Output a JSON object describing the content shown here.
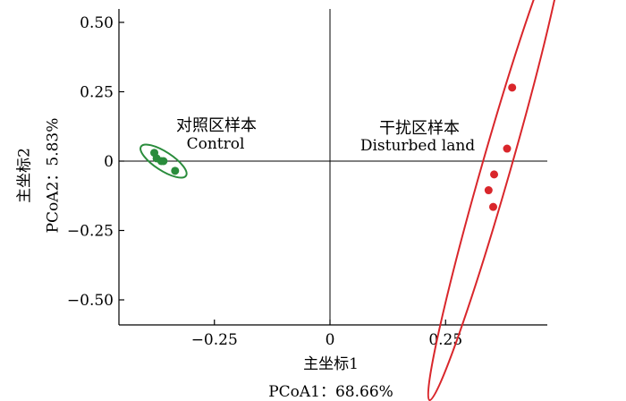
{
  "chart_data": {
    "type": "scatter",
    "title": "",
    "xlabel_cn": "主坐标1",
    "xlabel_en": "PCoA1：68.66%",
    "ylabel_cn": "主坐标2",
    "ylabel_en": "PCoA2：5.83%",
    "xlim": [
      -0.5,
      0.5
    ],
    "ylim": [
      -0.6,
      0.55
    ],
    "x_ticks": [
      {
        "value": -0.25,
        "label": "−0.25"
      },
      {
        "value": 0,
        "label": "0"
      },
      {
        "value": 0.25,
        "label": "0.25"
      }
    ],
    "y_ticks": [
      {
        "value": 0.5,
        "label": "0.50"
      },
      {
        "value": 0.25,
        "label": "0.25"
      },
      {
        "value": 0,
        "label": "0"
      },
      {
        "value": -0.25,
        "label": "−0.25"
      },
      {
        "value": -0.5,
        "label": "−0.50"
      }
    ],
    "series": [
      {
        "name_cn": "对照区样本",
        "name_en": "Control",
        "color": "#2a8c3c",
        "points": [
          {
            "x": -0.38,
            "y": 0.03
          },
          {
            "x": -0.375,
            "y": 0.01
          },
          {
            "x": -0.365,
            "y": 0.0
          },
          {
            "x": -0.36,
            "y": 0.0
          },
          {
            "x": -0.335,
            "y": -0.035
          }
        ],
        "ellipse": {
          "cx": -0.36,
          "cy": 0.0,
          "rx": 0.058,
          "ry": 0.02,
          "angle_deg": 33
        }
      },
      {
        "name_cn": "干扰区样本",
        "name_en": "Disturbed land",
        "color": "#d9262b",
        "points": [
          {
            "x": 0.394,
            "y": 0.265
          },
          {
            "x": 0.383,
            "y": 0.045
          },
          {
            "x": 0.355,
            "y": -0.048
          },
          {
            "x": 0.343,
            "y": -0.105
          },
          {
            "x": 0.353,
            "y": -0.165
          }
        ],
        "ellipse": {
          "cx": 0.36,
          "cy": -0.02,
          "rx": 0.525,
          "ry": 0.031,
          "angle_deg": -74
        }
      }
    ]
  }
}
